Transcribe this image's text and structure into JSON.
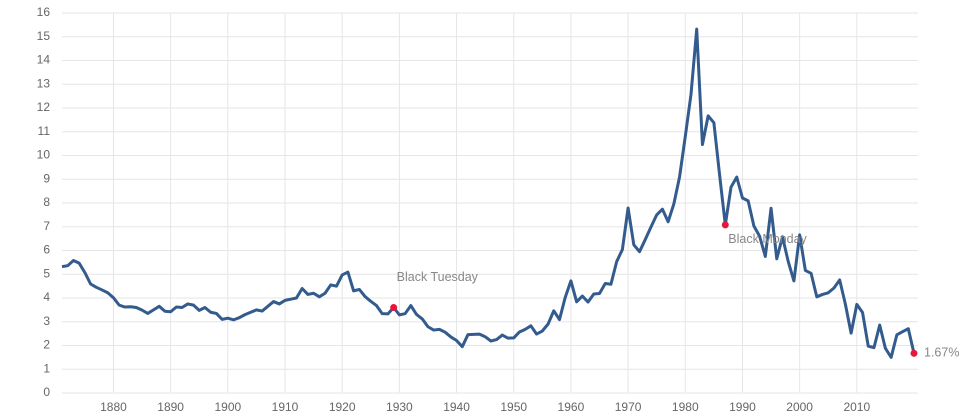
{
  "chart_data": {
    "type": "line",
    "x": [
      1871,
      1872,
      1873,
      1874,
      1875,
      1876,
      1877,
      1878,
      1879,
      1880,
      1881,
      1882,
      1883,
      1884,
      1885,
      1886,
      1887,
      1888,
      1889,
      1890,
      1891,
      1892,
      1893,
      1894,
      1895,
      1896,
      1897,
      1898,
      1899,
      1900,
      1901,
      1902,
      1903,
      1904,
      1905,
      1906,
      1907,
      1908,
      1909,
      1910,
      1911,
      1912,
      1913,
      1914,
      1915,
      1916,
      1917,
      1918,
      1919,
      1920,
      1921,
      1922,
      1923,
      1924,
      1925,
      1926,
      1927,
      1928,
      1929,
      1930,
      1931,
      1932,
      1933,
      1934,
      1935,
      1936,
      1937,
      1938,
      1939,
      1940,
      1941,
      1942,
      1943,
      1944,
      1945,
      1946,
      1947,
      1948,
      1949,
      1950,
      1951,
      1952,
      1953,
      1954,
      1955,
      1956,
      1957,
      1958,
      1959,
      1960,
      1961,
      1962,
      1963,
      1964,
      1965,
      1966,
      1967,
      1968,
      1969,
      1970,
      1971,
      1972,
      1973,
      1974,
      1975,
      1976,
      1977,
      1978,
      1979,
      1980,
      1981,
      1982,
      1983,
      1984,
      1985,
      1986,
      1987,
      1988,
      1989,
      1990,
      1991,
      1992,
      1993,
      1994,
      1995,
      1996,
      1997,
      1998,
      1999,
      2000,
      2001,
      2002,
      2003,
      2004,
      2005,
      2006,
      2007,
      2008,
      2009,
      2010,
      2011,
      2012,
      2013,
      2014,
      2015,
      2016,
      2017,
      2018,
      2019,
      2020
    ],
    "values": [
      5.32,
      5.36,
      5.58,
      5.47,
      5.07,
      4.59,
      4.45,
      4.34,
      4.22,
      4.01,
      3.7,
      3.62,
      3.63,
      3.6,
      3.49,
      3.35,
      3.5,
      3.65,
      3.44,
      3.42,
      3.62,
      3.6,
      3.75,
      3.7,
      3.48,
      3.6,
      3.4,
      3.35,
      3.1,
      3.15,
      3.08,
      3.17,
      3.3,
      3.4,
      3.5,
      3.45,
      3.65,
      3.85,
      3.75,
      3.9,
      3.95,
      4.0,
      4.4,
      4.15,
      4.2,
      4.05,
      4.2,
      4.55,
      4.5,
      4.97,
      5.09,
      4.3,
      4.36,
      4.06,
      3.86,
      3.68,
      3.34,
      3.33,
      3.6,
      3.29,
      3.34,
      3.68,
      3.31,
      3.12,
      2.79,
      2.65,
      2.68,
      2.56,
      2.36,
      2.21,
      1.95,
      2.46,
      2.47,
      2.48,
      2.37,
      2.19,
      2.25,
      2.44,
      2.31,
      2.32,
      2.57,
      2.68,
      2.83,
      2.48,
      2.61,
      2.9,
      3.46,
      3.09,
      4.02,
      4.72,
      3.84,
      4.08,
      3.83,
      4.17,
      4.19,
      4.61,
      4.58,
      5.53,
      6.04,
      7.79,
      6.24,
      5.95,
      6.46,
      6.99,
      7.5,
      7.74,
      7.21,
      7.96,
      9.1,
      10.8,
      12.57,
      15.32,
      10.46,
      11.67,
      11.38,
      9.19,
      7.08,
      8.67,
      9.09,
      8.21,
      8.09,
      7.03,
      6.6,
      5.75,
      7.78,
      5.65,
      6.58,
      5.54,
      4.72,
      6.66,
      5.16,
      5.04,
      4.05,
      4.15,
      4.22,
      4.42,
      4.76,
      3.74,
      2.52,
      3.73,
      3.39,
      1.97,
      1.91,
      2.86,
      1.88,
      1.5,
      2.45,
      2.58,
      2.71,
      1.67
    ],
    "color": "#335b8e",
    "xlim": [
      1871,
      2020
    ],
    "xticks": [
      1880,
      1890,
      1900,
      1910,
      1920,
      1930,
      1940,
      1950,
      1960,
      1970,
      1980,
      1990,
      2000,
      2010
    ],
    "ylim": [
      0,
      16
    ],
    "yticks": [
      0,
      1,
      2,
      3,
      4,
      5,
      6,
      7,
      8,
      9,
      10,
      11,
      12,
      13,
      14,
      15,
      16
    ],
    "grid": true,
    "annotations": [
      {
        "text": "Black Tuesday",
        "x": 1929
      },
      {
        "text": "Black Monday",
        "x": 1987
      },
      {
        "text": "1.67%",
        "x": 2020
      }
    ],
    "annotation_color": "#e8173a"
  }
}
